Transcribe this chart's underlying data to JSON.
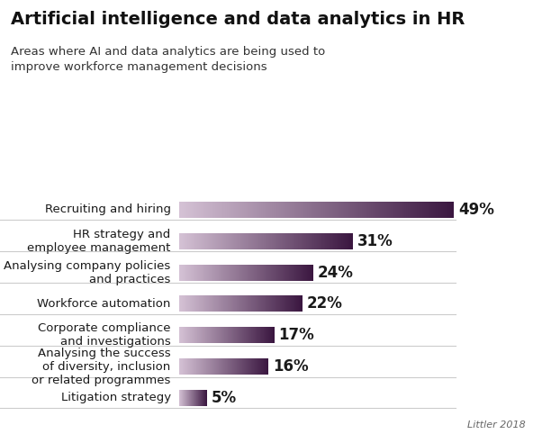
{
  "title": "Artificial intelligence and data analytics in HR",
  "subtitle": "Areas where AI and data analytics are being used to\nimprove workforce management decisions",
  "categories": [
    "Recruiting and hiring",
    "HR strategy and\nemployee management",
    "Analysing company policies\nand practices",
    "Workforce automation",
    "Corporate compliance\nand investigations",
    "Analysing the success\nof diversity, inclusion\nor related programmes",
    "Litigation strategy"
  ],
  "values": [
    49,
    31,
    24,
    22,
    17,
    16,
    5
  ],
  "bar_color_left": "#d5c2d5",
  "bar_color_right": "#3a1640",
  "background_color": "#ffffff",
  "title_fontsize": 14,
  "subtitle_fontsize": 9.5,
  "label_fontsize": 9.5,
  "value_fontsize": 12,
  "source": "Littler 2018",
  "xlim": [
    0,
    58
  ]
}
